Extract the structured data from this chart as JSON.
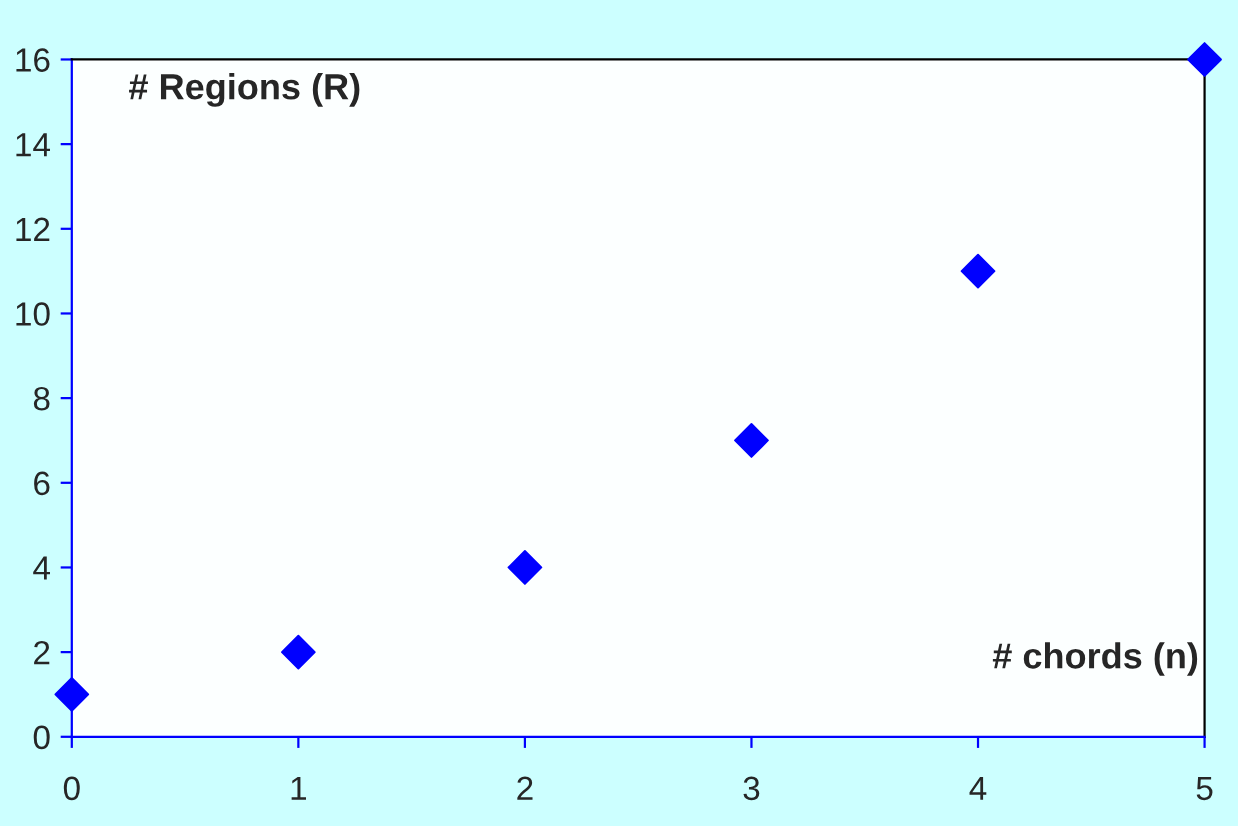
{
  "chart_data": {
    "type": "scatter",
    "xlabel": "# chords (n)",
    "ylabel": "# Regions (R)",
    "x": [
      0,
      1,
      2,
      3,
      4,
      5
    ],
    "series": [
      {
        "color": "#0000ff",
        "values": [
          1,
          2,
          4,
          7,
          11,
          16
        ]
      }
    ],
    "xlim": [
      0,
      5
    ],
    "xticks": [
      0,
      1,
      2,
      3,
      4,
      5
    ],
    "ylim": [
      0,
      16
    ],
    "yticks": [
      0,
      2,
      4,
      6,
      8,
      10,
      12,
      14,
      16
    ],
    "marker": "diamond",
    "grid": false,
    "legend": false
  }
}
